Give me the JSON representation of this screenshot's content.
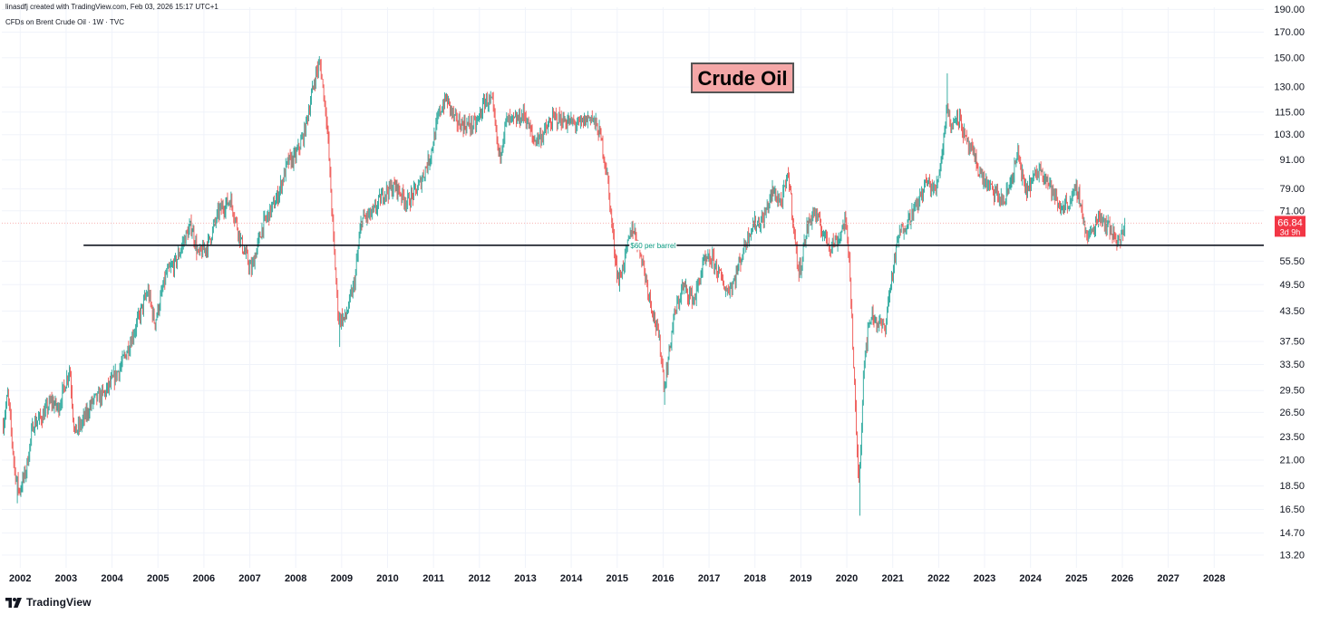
{
  "header": {
    "credit": "linasdfj created with TradingView.com, Feb 03, 2026 15:17 UTC+1",
    "symbol": "CFDs on Brent Crude Oil · 1W · TVC"
  },
  "footer": {
    "brand": "TradingView"
  },
  "colors": {
    "up": "#26a69a",
    "down": "#ef5350",
    "label_bg": "#f4a7a7",
    "label_border": "#555555",
    "price_tag": "#f23645",
    "grid": "#f0f3fa",
    "hline": "#131722"
  },
  "chart_data": {
    "type": "candlestick",
    "title": "Crude Oil",
    "interval": "1W",
    "y_scale": "log",
    "ylim": [
      12.4,
      192
    ],
    "xlim": [
      2001.62,
      2029.1
    ],
    "y_ticks": [
      "190.00",
      "170.00",
      "150.00",
      "130.00",
      "115.00",
      "103.00",
      "91.00",
      "79.00",
      "71.00",
      "55.50",
      "49.50",
      "43.50",
      "37.50",
      "33.50",
      "29.50",
      "26.50",
      "23.50",
      "21.00",
      "18.50",
      "16.50",
      "14.70",
      "13.20"
    ],
    "x_ticks": [
      "2002",
      "2003",
      "2004",
      "2005",
      "2006",
      "2007",
      "2008",
      "2009",
      "2010",
      "2011",
      "2012",
      "2013",
      "2014",
      "2015",
      "2016",
      "2017",
      "2018",
      "2019",
      "2020",
      "2021",
      "2022",
      "2023",
      "2024",
      "2025",
      "2026",
      "2027",
      "2028"
    ],
    "grid": true,
    "last_price": {
      "value": "66.84",
      "countdown": "3d 9h"
    },
    "horizontal_line": {
      "value": 60,
      "label": "$60 per barrel",
      "x_start": 2003.4
    },
    "price_path": [
      [
        2001.65,
        25
      ],
      [
        2001.75,
        29
      ],
      [
        2001.9,
        20
      ],
      [
        2002.0,
        18
      ],
      [
        2002.15,
        20
      ],
      [
        2002.3,
        25
      ],
      [
        2002.5,
        26
      ],
      [
        2002.7,
        28
      ],
      [
        2002.85,
        27
      ],
      [
        2003.1,
        33
      ],
      [
        2003.2,
        24
      ],
      [
        2003.35,
        25
      ],
      [
        2003.6,
        28
      ],
      [
        2003.85,
        29
      ],
      [
        2004.2,
        33
      ],
      [
        2004.4,
        37
      ],
      [
        2004.6,
        42
      ],
      [
        2004.8,
        48
      ],
      [
        2004.95,
        41
      ],
      [
        2005.2,
        52
      ],
      [
        2005.4,
        55
      ],
      [
        2005.6,
        62
      ],
      [
        2005.75,
        66
      ],
      [
        2005.9,
        57
      ],
      [
        2006.1,
        60
      ],
      [
        2006.35,
        71
      ],
      [
        2006.6,
        75
      ],
      [
        2006.85,
        60
      ],
      [
        2007.05,
        53
      ],
      [
        2007.3,
        66
      ],
      [
        2007.6,
        75
      ],
      [
        2007.85,
        90
      ],
      [
        2008.0,
        92
      ],
      [
        2008.2,
        103
      ],
      [
        2008.45,
        138
      ],
      [
        2008.55,
        146
      ],
      [
        2008.7,
        110
      ],
      [
        2008.85,
        60
      ],
      [
        2008.95,
        42
      ],
      [
        2009.1,
        42
      ],
      [
        2009.3,
        50
      ],
      [
        2009.45,
        68
      ],
      [
        2009.7,
        70
      ],
      [
        2009.95,
        78
      ],
      [
        2010.2,
        80
      ],
      [
        2010.45,
        74
      ],
      [
        2010.7,
        80
      ],
      [
        2010.95,
        93
      ],
      [
        2011.15,
        115
      ],
      [
        2011.3,
        123
      ],
      [
        2011.5,
        110
      ],
      [
        2011.7,
        108
      ],
      [
        2011.95,
        108
      ],
      [
        2012.15,
        122
      ],
      [
        2012.3,
        120
      ],
      [
        2012.45,
        92
      ],
      [
        2012.6,
        110
      ],
      [
        2012.8,
        110
      ],
      [
        2013.0,
        114
      ],
      [
        2013.2,
        100
      ],
      [
        2013.4,
        103
      ],
      [
        2013.65,
        112
      ],
      [
        2013.9,
        110
      ],
      [
        2014.2,
        108
      ],
      [
        2014.45,
        113
      ],
      [
        2014.65,
        103
      ],
      [
        2014.8,
        85
      ],
      [
        2014.95,
        60
      ],
      [
        2015.05,
        50
      ],
      [
        2015.2,
        57
      ],
      [
        2015.35,
        66
      ],
      [
        2015.55,
        57
      ],
      [
        2015.7,
        48
      ],
      [
        2015.95,
        37
      ],
      [
        2016.05,
        30
      ],
      [
        2016.25,
        42
      ],
      [
        2016.45,
        49
      ],
      [
        2016.7,
        46
      ],
      [
        2016.9,
        55
      ],
      [
        2017.1,
        56
      ],
      [
        2017.4,
        48
      ],
      [
        2017.55,
        50
      ],
      [
        2017.8,
        60
      ],
      [
        2017.95,
        66
      ],
      [
        2018.2,
        68
      ],
      [
        2018.4,
        78
      ],
      [
        2018.6,
        74
      ],
      [
        2018.75,
        85
      ],
      [
        2018.9,
        60
      ],
      [
        2018.98,
        52
      ],
      [
        2019.15,
        65
      ],
      [
        2019.3,
        71
      ],
      [
        2019.5,
        64
      ],
      [
        2019.65,
        60
      ],
      [
        2019.85,
        62
      ],
      [
        2019.98,
        68
      ],
      [
        2020.08,
        56
      ],
      [
        2020.17,
        33
      ],
      [
        2020.25,
        21
      ],
      [
        2020.29,
        19
      ],
      [
        2020.4,
        35
      ],
      [
        2020.55,
        43
      ],
      [
        2020.7,
        41
      ],
      [
        2020.85,
        40
      ],
      [
        2020.98,
        50
      ],
      [
        2021.15,
        63
      ],
      [
        2021.35,
        68
      ],
      [
        2021.55,
        73
      ],
      [
        2021.75,
        82
      ],
      [
        2021.95,
        78
      ],
      [
        2022.1,
        95
      ],
      [
        2022.2,
        120
      ],
      [
        2022.3,
        105
      ],
      [
        2022.4,
        115
      ],
      [
        2022.5,
        110
      ],
      [
        2022.6,
        100
      ],
      [
        2022.8,
        92
      ],
      [
        2022.95,
        84
      ],
      [
        2023.2,
        78
      ],
      [
        2023.45,
        74
      ],
      [
        2023.65,
        86
      ],
      [
        2023.75,
        94
      ],
      [
        2023.9,
        78
      ],
      [
        2024.05,
        82
      ],
      [
        2024.25,
        88
      ],
      [
        2024.45,
        80
      ],
      [
        2024.65,
        72
      ],
      [
        2024.85,
        74
      ],
      [
        2025.05,
        79
      ],
      [
        2025.25,
        62
      ],
      [
        2025.4,
        65
      ],
      [
        2025.5,
        70
      ],
      [
        2025.7,
        66
      ],
      [
        2025.85,
        63
      ],
      [
        2025.95,
        61
      ],
      [
        2026.05,
        64
      ],
      [
        2026.09,
        66.84
      ]
    ],
    "notable_wicks": [
      {
        "x": 2008.5,
        "high": 147.5
      },
      {
        "x": 2022.2,
        "high": 139.0
      },
      {
        "x": 2020.3,
        "low": 16.0
      },
      {
        "x": 2001.95,
        "low": 17.0
      },
      {
        "x": 2008.97,
        "low": 36.5
      },
      {
        "x": 2016.05,
        "low": 27.5
      }
    ]
  }
}
